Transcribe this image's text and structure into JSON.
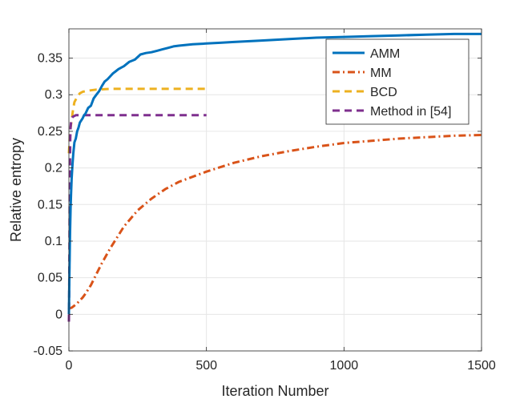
{
  "chart_data": {
    "type": "line",
    "title": "",
    "xlabel": "Iteration Number",
    "ylabel": "Relative entropy",
    "xlim": [
      0,
      1500
    ],
    "ylim": [
      -0.05,
      0.39
    ],
    "xticks": [
      0,
      500,
      1000,
      1500
    ],
    "xtick_labels": [
      "0",
      "500",
      "1000",
      "1500"
    ],
    "yticks": [
      -0.05,
      0,
      0.05,
      0.1,
      0.15,
      0.2,
      0.25,
      0.3,
      0.35
    ],
    "ytick_labels": [
      "-0.05",
      "0",
      "0.05",
      "0.1",
      "0.15",
      "0.2",
      "0.25",
      "0.3",
      "0.35"
    ],
    "grid": true,
    "legend_position": "top-right",
    "series": [
      {
        "name": "AMM",
        "color": "#0072BD",
        "style": "solid",
        "x": [
          0,
          2,
          4,
          6,
          8,
          10,
          13,
          16,
          20,
          25,
          30,
          35,
          40,
          45,
          50,
          55,
          60,
          70,
          80,
          90,
          100,
          110,
          120,
          130,
          140,
          150,
          160,
          170,
          180,
          190,
          200,
          220,
          240,
          260,
          280,
          300,
          320,
          340,
          360,
          380,
          400,
          450,
          500,
          550,
          600,
          700,
          800,
          900,
          1000,
          1100,
          1200,
          1300,
          1400,
          1500
        ],
        "y": [
          0.0,
          0.06,
          0.11,
          0.145,
          0.165,
          0.185,
          0.205,
          0.22,
          0.235,
          0.24,
          0.25,
          0.255,
          0.262,
          0.265,
          0.268,
          0.272,
          0.274,
          0.282,
          0.285,
          0.295,
          0.3,
          0.305,
          0.312,
          0.318,
          0.321,
          0.325,
          0.329,
          0.332,
          0.335,
          0.337,
          0.339,
          0.345,
          0.348,
          0.355,
          0.357,
          0.358,
          0.36,
          0.362,
          0.364,
          0.366,
          0.367,
          0.369,
          0.37,
          0.371,
          0.372,
          0.374,
          0.376,
          0.378,
          0.379,
          0.38,
          0.381,
          0.382,
          0.383,
          0.383
        ]
      },
      {
        "name": "MM",
        "color": "#D95319",
        "style": "dashdot",
        "x": [
          0,
          10,
          20,
          30,
          40,
          50,
          60,
          80,
          100,
          120,
          150,
          200,
          250,
          300,
          350,
          400,
          500,
          600,
          700,
          800,
          900,
          1000,
          1100,
          1200,
          1300,
          1400,
          1500
        ],
        "y": [
          0.008,
          0.009,
          0.012,
          0.015,
          0.019,
          0.023,
          0.028,
          0.04,
          0.055,
          0.07,
          0.09,
          0.12,
          0.142,
          0.158,
          0.171,
          0.181,
          0.195,
          0.207,
          0.216,
          0.223,
          0.229,
          0.234,
          0.237,
          0.24,
          0.242,
          0.244,
          0.245
        ]
      },
      {
        "name": "BCD",
        "color": "#EDB120",
        "style": "dashed",
        "x": [
          0,
          3,
          6,
          10,
          15,
          20,
          30,
          40,
          50,
          60,
          80,
          100,
          150,
          200,
          300,
          400,
          500
        ],
        "y": [
          0.22,
          0.24,
          0.255,
          0.265,
          0.28,
          0.29,
          0.297,
          0.302,
          0.304,
          0.305,
          0.306,
          0.307,
          0.308,
          0.308,
          0.308,
          0.308,
          0.308
        ]
      },
      {
        "name": "Method in [54]",
        "color": "#7E2F8E",
        "style": "dashed",
        "x": [
          0,
          1,
          2,
          3,
          4,
          5,
          6,
          8,
          10,
          12,
          15,
          20,
          25,
          30,
          50,
          100,
          200,
          300,
          400,
          500
        ],
        "y": [
          -0.01,
          0.02,
          0.09,
          0.16,
          0.21,
          0.24,
          0.255,
          0.263,
          0.267,
          0.269,
          0.27,
          0.271,
          0.272,
          0.272,
          0.272,
          0.272,
          0.272,
          0.272,
          0.272,
          0.272
        ]
      }
    ]
  }
}
